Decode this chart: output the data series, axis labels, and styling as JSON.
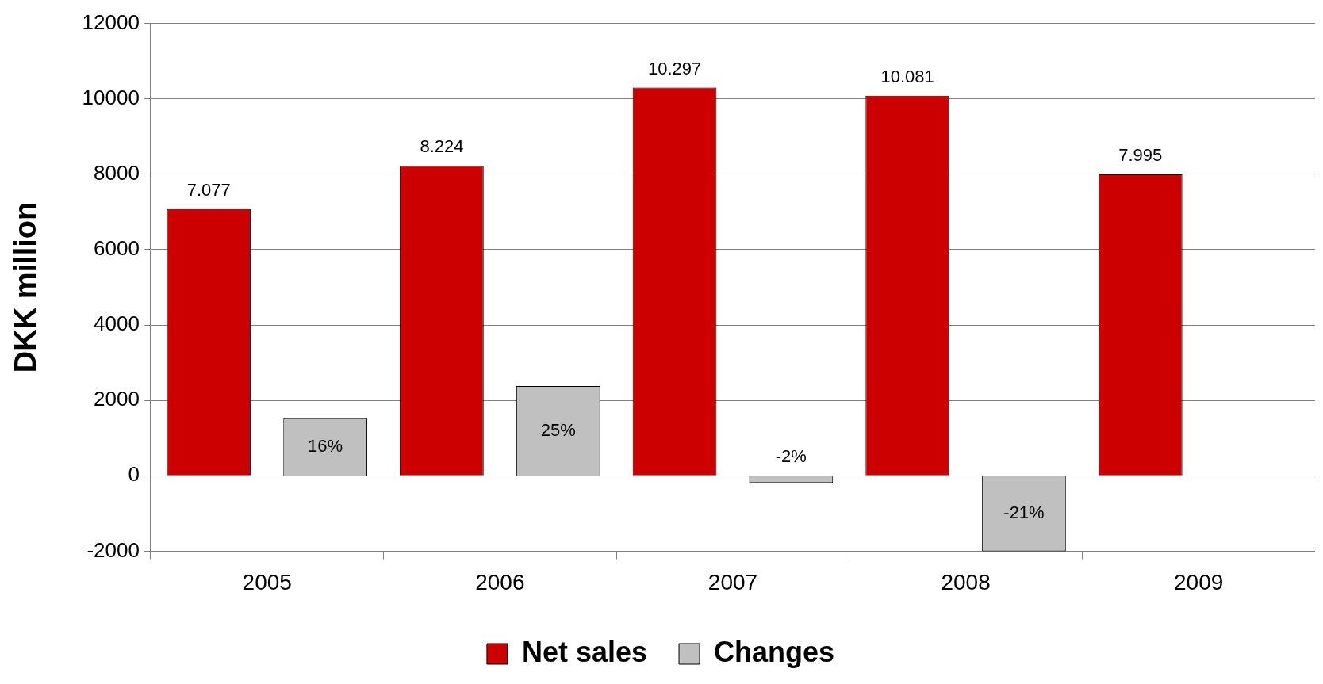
{
  "chart_data": {
    "type": "bar",
    "ylabel": "DKK million",
    "categories": [
      "2005",
      "2006",
      "2007",
      "2008",
      "2009"
    ],
    "series": [
      {
        "name": "Net sales",
        "color": "#cc0000",
        "values": [
          7077,
          8224,
          10297,
          10081,
          7995
        ],
        "value_labels": [
          "7.077",
          "8.224",
          "10.297",
          "10.081",
          "7.995"
        ]
      },
      {
        "name": "Changes",
        "color": "#c0c0c0",
        "axis": "y2",
        "values": [
          16,
          25,
          -2,
          -21,
          null
        ],
        "value_labels": [
          "16%",
          "25%",
          "-2%",
          "-21%",
          null
        ]
      }
    ],
    "y2lim": [
      -21,
      126
    ],
    "ylim": [
      -2000,
      12000
    ],
    "yticks": [
      -2000,
      0,
      2000,
      4000,
      6000,
      8000,
      10000,
      12000
    ],
    "grid": "y",
    "legend": "bottom"
  }
}
